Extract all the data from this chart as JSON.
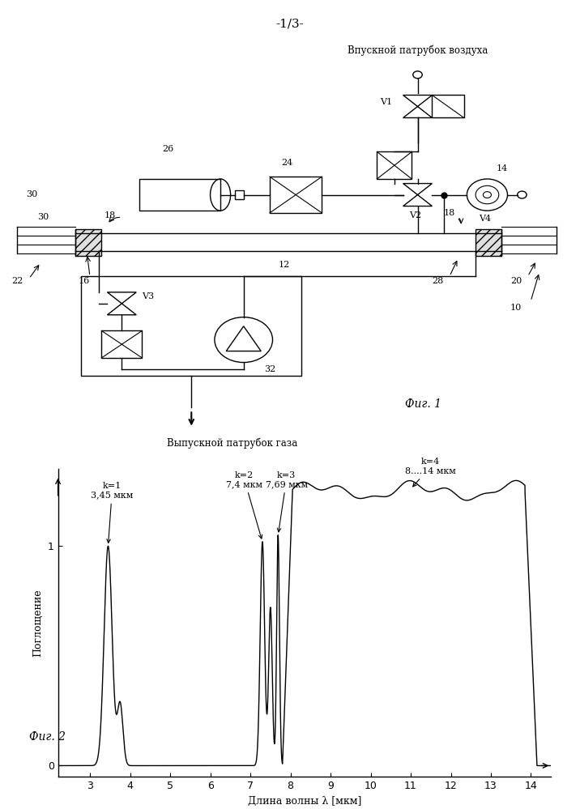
{
  "page_label": "-1/3-",
  "fig1_label": "Фиг. 1",
  "fig2_label": "Фиг. 2",
  "air_inlet_label": "Впускной патрубок воздуха",
  "gas_outlet_label": "Выпускной патрубок газа",
  "absorption_label": "Поглощение",
  "wavelength_label": "Длина волны λ [мкм]",
  "xlim": [
    2.2,
    14.5
  ],
  "ylim": [
    -0.05,
    1.35
  ],
  "xticks": [
    3,
    4,
    5,
    6,
    7,
    8,
    9,
    10,
    11,
    12,
    13,
    14
  ],
  "yticks": [
    0,
    1
  ],
  "background_color": "#ffffff"
}
